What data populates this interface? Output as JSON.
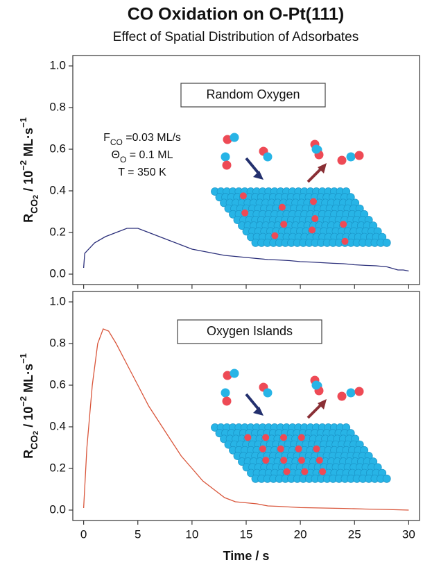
{
  "title": "CO Oxidation on O-Pt(111)",
  "subtitle": "Effect of Spatial Distribution of Adsorbates",
  "chart_data": [
    {
      "type": "line",
      "annotation": "Random Oxygen",
      "parameters": [
        [
          "F",
          "CO",
          " =0.03 ML/s"
        ],
        [
          "Θ",
          "O",
          " = 0.1 ML"
        ],
        [
          "T = 350 K"
        ]
      ],
      "ylabel": [
        "R",
        "CO",
        "2",
        " / 10",
        "−2",
        " ML·s",
        "−1"
      ],
      "color": "#2b2f7a",
      "x": [
        0,
        0.1,
        1,
        2,
        3,
        4,
        5,
        6,
        7,
        8,
        9,
        10,
        11,
        12,
        13,
        14,
        15,
        16,
        17,
        18,
        19,
        20,
        21,
        22,
        23,
        24,
        25,
        26,
        27,
        28,
        29,
        29.5,
        30
      ],
      "values": [
        0.03,
        0.1,
        0.15,
        0.18,
        0.2,
        0.22,
        0.22,
        0.2,
        0.18,
        0.16,
        0.14,
        0.12,
        0.11,
        0.1,
        0.09,
        0.085,
        0.08,
        0.075,
        0.07,
        0.068,
        0.065,
        0.06,
        0.058,
        0.055,
        0.052,
        0.05,
        0.045,
        0.042,
        0.04,
        0.035,
        0.02,
        0.02,
        0.015
      ],
      "xlim": [
        -1,
        31
      ],
      "xticks": [
        0,
        5,
        10,
        15,
        20,
        25,
        30
      ],
      "ylim": [
        -0.05,
        1.05
      ],
      "yticks": [
        {
          "value": 0,
          "label": "0.0"
        },
        0.2,
        0.4,
        0.6,
        0.8,
        {
          "value": 1,
          "label": "1.0"
        }
      ]
    },
    {
      "type": "line",
      "annotation": "Oxygen Islands",
      "ylabel": [
        "R",
        "CO",
        "2",
        " / 10",
        "−2",
        " ML·s",
        "−1"
      ],
      "xlabel": "Time / s",
      "color": "#d9553a",
      "x": [
        0,
        0.3,
        0.8,
        1.3,
        1.8,
        2.3,
        3,
        4,
        5,
        6,
        7,
        8,
        9,
        10,
        11,
        12,
        13,
        14,
        15,
        16,
        17,
        18,
        19,
        20,
        22,
        24,
        26,
        28,
        30
      ],
      "values": [
        0.01,
        0.3,
        0.6,
        0.8,
        0.87,
        0.86,
        0.8,
        0.7,
        0.6,
        0.5,
        0.42,
        0.34,
        0.26,
        0.2,
        0.14,
        0.1,
        0.06,
        0.04,
        0.035,
        0.03,
        0.02,
        0.018,
        0.015,
        0.012,
        0.01,
        0.008,
        0.005,
        0.003,
        0
      ],
      "xlim": [
        -1,
        31
      ],
      "xticks": [
        0,
        5,
        10,
        15,
        20,
        25,
        30
      ],
      "ylim": [
        -0.05,
        1.05
      ],
      "yticks": [
        {
          "value": 0,
          "label": "0.0"
        },
        0.2,
        0.4,
        0.6,
        0.8,
        {
          "value": 1,
          "label": "1.0"
        }
      ]
    }
  ]
}
